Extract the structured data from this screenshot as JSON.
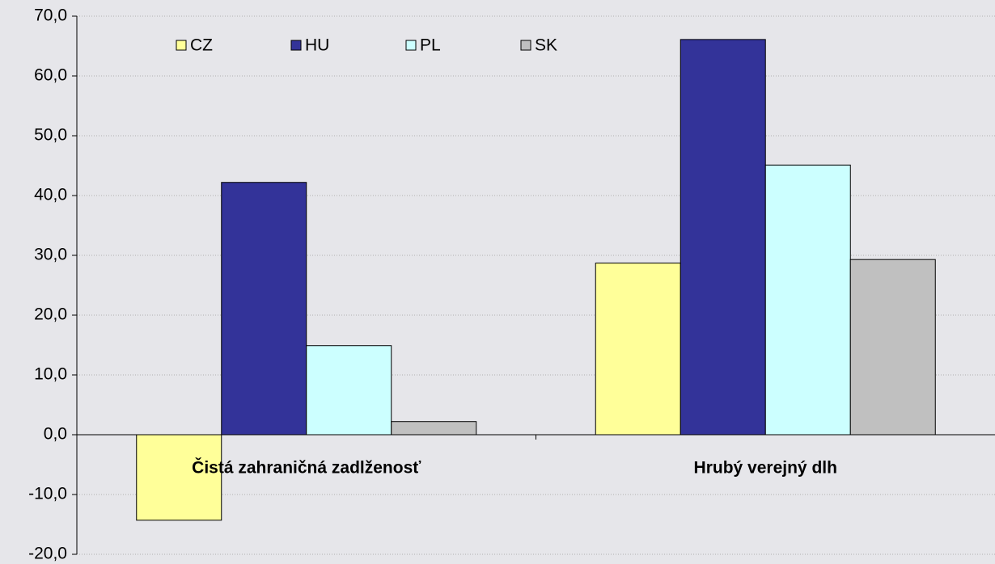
{
  "chart_data": {
    "type": "bar",
    "categories": [
      "Čistá zahraničná zadlženosť",
      "Hrubý verejný dlh"
    ],
    "series": [
      {
        "name": "CZ",
        "color": "#ffff99",
        "values": [
          -14.3,
          28.7
        ]
      },
      {
        "name": "HU",
        "color": "#333399",
        "values": [
          42.2,
          66.1
        ]
      },
      {
        "name": "PL",
        "color": "#ccffff",
        "values": [
          14.9,
          45.1
        ]
      },
      {
        "name": "SK",
        "color": "#c0c0c0",
        "values": [
          2.2,
          29.3
        ]
      }
    ],
    "ylim": [
      -20,
      70
    ],
    "yticks": [
      {
        "value": -20,
        "label": "-20,0"
      },
      {
        "value": -10,
        "label": "-10,0"
      },
      {
        "value": 0,
        "label": "0,0"
      },
      {
        "value": 10,
        "label": "10,0"
      },
      {
        "value": 20,
        "label": "20,0"
      },
      {
        "value": 30,
        "label": "30,0"
      },
      {
        "value": 40,
        "label": "40,0"
      },
      {
        "value": 50,
        "label": "50,0"
      },
      {
        "value": 60,
        "label": "60,0"
      },
      {
        "value": 70,
        "label": "70,0"
      }
    ],
    "grid": true
  }
}
